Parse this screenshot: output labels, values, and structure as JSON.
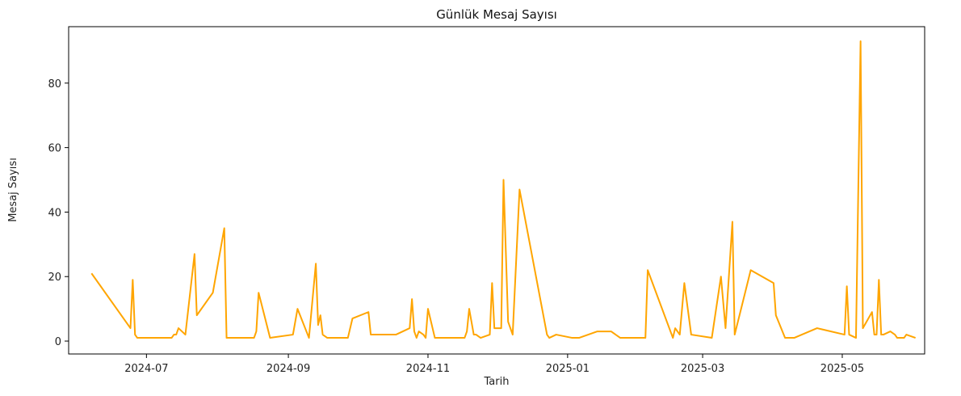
{
  "chart_data": {
    "type": "line",
    "title": "Günlük Mesaj Sayısı",
    "xlabel": "Tarih",
    "ylabel": "Mesaj Sayısı",
    "grid": false,
    "line_color": "#FFA500",
    "x_ticks": [
      "2024-07",
      "2024-09",
      "2024-11",
      "2025-01",
      "2025-03",
      "2025-05"
    ],
    "y_ticks": [
      0,
      20,
      40,
      60,
      80
    ],
    "xlim": [
      "2024-05-28",
      "2025-06-06"
    ],
    "ylim": [
      -4,
      97.5
    ],
    "series": [
      {
        "points": [
          [
            "2024-06-07",
            21
          ],
          [
            "2024-06-24",
            4
          ],
          [
            "2024-06-25",
            19
          ],
          [
            "2024-06-26",
            2
          ],
          [
            "2024-06-27",
            1
          ],
          [
            "2024-07-12",
            1
          ],
          [
            "2024-07-13",
            2
          ],
          [
            "2024-07-14",
            2
          ],
          [
            "2024-07-15",
            4
          ],
          [
            "2024-07-18",
            2
          ],
          [
            "2024-07-22",
            27
          ],
          [
            "2024-07-23",
            8
          ],
          [
            "2024-07-30",
            15
          ],
          [
            "2024-08-04",
            35
          ],
          [
            "2024-08-05",
            1
          ],
          [
            "2024-08-17",
            1
          ],
          [
            "2024-08-18",
            3
          ],
          [
            "2024-08-19",
            15
          ],
          [
            "2024-08-24",
            1
          ],
          [
            "2024-09-03",
            2
          ],
          [
            "2024-09-05",
            10
          ],
          [
            "2024-09-10",
            1
          ],
          [
            "2024-09-13",
            24
          ],
          [
            "2024-09-14",
            5
          ],
          [
            "2024-09-15",
            8
          ],
          [
            "2024-09-16",
            2
          ],
          [
            "2024-09-18",
            1
          ],
          [
            "2024-09-27",
            1
          ],
          [
            "2024-09-29",
            7
          ],
          [
            "2024-10-06",
            9
          ],
          [
            "2024-10-07",
            2
          ],
          [
            "2024-10-18",
            2
          ],
          [
            "2024-10-24",
            4
          ],
          [
            "2024-10-25",
            13
          ],
          [
            "2024-10-26",
            3
          ],
          [
            "2024-10-27",
            1
          ],
          [
            "2024-10-28",
            3
          ],
          [
            "2024-10-30",
            2
          ],
          [
            "2024-10-31",
            1
          ],
          [
            "2024-11-01",
            10
          ],
          [
            "2024-11-04",
            1
          ],
          [
            "2024-11-17",
            1
          ],
          [
            "2024-11-18",
            3
          ],
          [
            "2024-11-19",
            10
          ],
          [
            "2024-11-21",
            2
          ],
          [
            "2024-11-22",
            2
          ],
          [
            "2024-11-24",
            1
          ],
          [
            "2024-11-28",
            2
          ],
          [
            "2024-11-29",
            18
          ],
          [
            "2024-11-30",
            4
          ],
          [
            "2024-12-03",
            4
          ],
          [
            "2024-12-04",
            50
          ],
          [
            "2024-12-06",
            6
          ],
          [
            "2024-12-08",
            2
          ],
          [
            "2024-12-11",
            47
          ],
          [
            "2024-12-23",
            2
          ],
          [
            "2024-12-24",
            1
          ],
          [
            "2024-12-27",
            2
          ],
          [
            "2025-01-03",
            1
          ],
          [
            "2025-01-06",
            1
          ],
          [
            "2025-01-14",
            3
          ],
          [
            "2025-01-20",
            3
          ],
          [
            "2025-01-24",
            1
          ],
          [
            "2025-02-04",
            1
          ],
          [
            "2025-02-05",
            22
          ],
          [
            "2025-02-16",
            1
          ],
          [
            "2025-02-17",
            4
          ],
          [
            "2025-02-19",
            2
          ],
          [
            "2025-02-21",
            18
          ],
          [
            "2025-02-24",
            2
          ],
          [
            "2025-03-05",
            1
          ],
          [
            "2025-03-09",
            20
          ],
          [
            "2025-03-11",
            4
          ],
          [
            "2025-03-14",
            37
          ],
          [
            "2025-03-15",
            2
          ],
          [
            "2025-03-22",
            22
          ],
          [
            "2025-04-01",
            18
          ],
          [
            "2025-04-02",
            8
          ],
          [
            "2025-04-06",
            1
          ],
          [
            "2025-04-10",
            1
          ],
          [
            "2025-04-20",
            4
          ],
          [
            "2025-05-02",
            2
          ],
          [
            "2025-05-03",
            17
          ],
          [
            "2025-05-04",
            2
          ],
          [
            "2025-05-07",
            1
          ],
          [
            "2025-05-09",
            93
          ],
          [
            "2025-05-10",
            4
          ],
          [
            "2025-05-14",
            9
          ],
          [
            "2025-05-15",
            2
          ],
          [
            "2025-05-16",
            2
          ],
          [
            "2025-05-17",
            19
          ],
          [
            "2025-05-18",
            2
          ],
          [
            "2025-05-19",
            2
          ],
          [
            "2025-05-22",
            3
          ],
          [
            "2025-05-24",
            2
          ],
          [
            "2025-05-25",
            1
          ],
          [
            "2025-05-28",
            1
          ],
          [
            "2025-05-29",
            2
          ],
          [
            "2025-06-02",
            1
          ]
        ]
      }
    ]
  }
}
